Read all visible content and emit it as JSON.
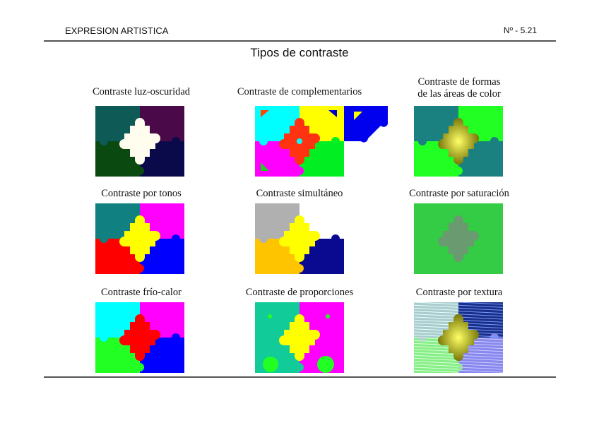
{
  "header": {
    "left": "EXPRESION ARTISTICA",
    "right": "Nº - 5.21"
  },
  "title": "Tipos de contraste",
  "panels": [
    {
      "caption": "Contraste luz-oscuridad",
      "colors": [
        "#0e5a57",
        "#4a0a4a",
        "#0a4a10",
        "#0a0a4a"
      ],
      "center": "#fffdee"
    },
    {
      "caption": "Contraste de complementarios",
      "colors": [
        "#00ffff",
        "#ffff00",
        "#ff00ff",
        "#00ee22"
      ],
      "center": "#ff3311"
    },
    {
      "caption": "Contraste de formas\n de las áreas de color",
      "colors": [
        "#1a8080",
        "#22ff22",
        "#22ff22",
        "#1a8080"
      ],
      "center": "#cccc10"
    },
    {
      "caption": "Contraste por tonos",
      "colors": [
        "#118080",
        "#ff00ff",
        "#ff0000",
        "#0000ff"
      ],
      "center": "#ffff00"
    },
    {
      "caption": "Contraste simultáneo",
      "colors": [
        "#b0b0b0",
        "#ffffff",
        "#ffc400",
        "#0a0a90"
      ],
      "center": "#ffff00"
    },
    {
      "caption": "Contraste por saturación",
      "colors": [
        "#33cc44",
        "#33cc44",
        "#33cc44",
        "#33cc44"
      ],
      "center": "#6a9a70"
    },
    {
      "caption": "Contraste frío-calor",
      "colors": [
        "#00ffff",
        "#ff00ff",
        "#22ff22",
        "#0000ff"
      ],
      "center": "#ff0000"
    },
    {
      "caption": "Contraste de proporciones",
      "colors": [
        "#11cc99",
        "#ff00ff",
        "#11cc99",
        "#ff00ff"
      ],
      "center": "#ffff00"
    },
    {
      "caption": "Contraste por textura",
      "colors": [
        "#aacccc",
        "#1a2f88",
        "#88ee88",
        "#8888ee"
      ],
      "center": "#cccc10"
    }
  ]
}
